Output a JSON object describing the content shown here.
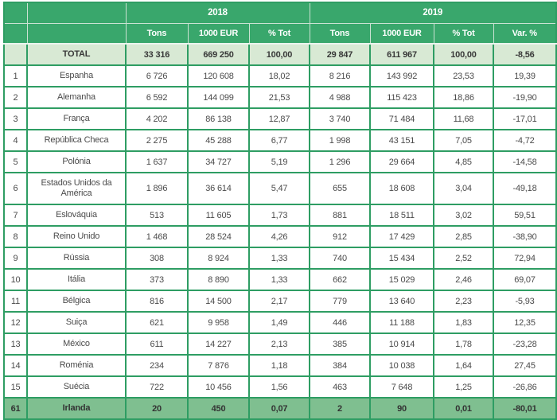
{
  "table": {
    "year_headers": [
      "2018",
      "2019"
    ],
    "column_headers": [
      "Tons",
      "1000 EUR",
      "% Tot",
      "Tons",
      "1000 EUR",
      "% Tot",
      "Var. %"
    ],
    "rows": [
      {
        "rank": "",
        "country": "TOTAL",
        "values": [
          "33 316",
          "669 250",
          "100,00",
          "29 847",
          "611 967",
          "100,00",
          "-8,56"
        ],
        "style": "total"
      },
      {
        "rank": "1",
        "country": "Espanha",
        "values": [
          "6 726",
          "120 608",
          "18,02",
          "8 216",
          "143 992",
          "23,53",
          "19,39"
        ],
        "style": "normal"
      },
      {
        "rank": "2",
        "country": "Alemanha",
        "values": [
          "6 592",
          "144 099",
          "21,53",
          "4 988",
          "115 423",
          "18,86",
          "-19,90"
        ],
        "style": "normal"
      },
      {
        "rank": "3",
        "country": "França",
        "values": [
          "4 202",
          "86 138",
          "12,87",
          "3 740",
          "71 484",
          "11,68",
          "-17,01"
        ],
        "style": "normal"
      },
      {
        "rank": "4",
        "country": "República Checa",
        "values": [
          "2 275",
          "45 288",
          "6,77",
          "1 998",
          "43 151",
          "7,05",
          "-4,72"
        ],
        "style": "normal"
      },
      {
        "rank": "5",
        "country": "Polónia",
        "values": [
          "1 637",
          "34 727",
          "5,19",
          "1 296",
          "29 664",
          "4,85",
          "-14,58"
        ],
        "style": "normal"
      },
      {
        "rank": "6",
        "country": "Estados Unidos da América",
        "values": [
          "1 896",
          "36 614",
          "5,47",
          "655",
          "18 608",
          "3,04",
          "-49,18"
        ],
        "style": "normal",
        "tall": true
      },
      {
        "rank": "7",
        "country": "Eslováquia",
        "values": [
          "513",
          "11 605",
          "1,73",
          "881",
          "18 511",
          "3,02",
          "59,51"
        ],
        "style": "normal"
      },
      {
        "rank": "8",
        "country": "Reino Unido",
        "values": [
          "1 468",
          "28 524",
          "4,26",
          "912",
          "17 429",
          "2,85",
          "-38,90"
        ],
        "style": "normal"
      },
      {
        "rank": "9",
        "country": "Rússia",
        "values": [
          "308",
          "8 924",
          "1,33",
          "740",
          "15 434",
          "2,52",
          "72,94"
        ],
        "style": "normal"
      },
      {
        "rank": "10",
        "country": "Itália",
        "values": [
          "373",
          "8 890",
          "1,33",
          "662",
          "15 029",
          "2,46",
          "69,07"
        ],
        "style": "normal"
      },
      {
        "rank": "11",
        "country": "Bélgica",
        "values": [
          "816",
          "14 500",
          "2,17",
          "779",
          "13 640",
          "2,23",
          "-5,93"
        ],
        "style": "normal"
      },
      {
        "rank": "12",
        "country": "Suiça",
        "values": [
          "621",
          "9 958",
          "1,49",
          "446",
          "11 188",
          "1,83",
          "12,35"
        ],
        "style": "normal"
      },
      {
        "rank": "13",
        "country": "México",
        "values": [
          "611",
          "14 227",
          "2,13",
          "385",
          "10 914",
          "1,78",
          "-23,28"
        ],
        "style": "normal"
      },
      {
        "rank": "14",
        "country": "Roménia",
        "values": [
          "234",
          "7 876",
          "1,18",
          "384",
          "10 038",
          "1,64",
          "27,45"
        ],
        "style": "normal"
      },
      {
        "rank": "15",
        "country": "Suécia",
        "values": [
          "722",
          "10 456",
          "1,56",
          "463",
          "7 648",
          "1,25",
          "-26,86"
        ],
        "style": "normal"
      },
      {
        "rank": "61",
        "country": "Irlanda",
        "values": [
          "20",
          "450",
          "0,07",
          "2",
          "90",
          "0,01",
          "-80,01"
        ],
        "style": "highlight"
      }
    ],
    "colors": {
      "header_green": "#39a76c",
      "grid_green": "#2e9d63",
      "total_row_bg": "#d8e9d4",
      "highlight_row_bg": "#7fbf90",
      "header_separator": "#cbe2d3",
      "header_text": "#ffffff",
      "body_text": "#4b4b4b"
    }
  }
}
